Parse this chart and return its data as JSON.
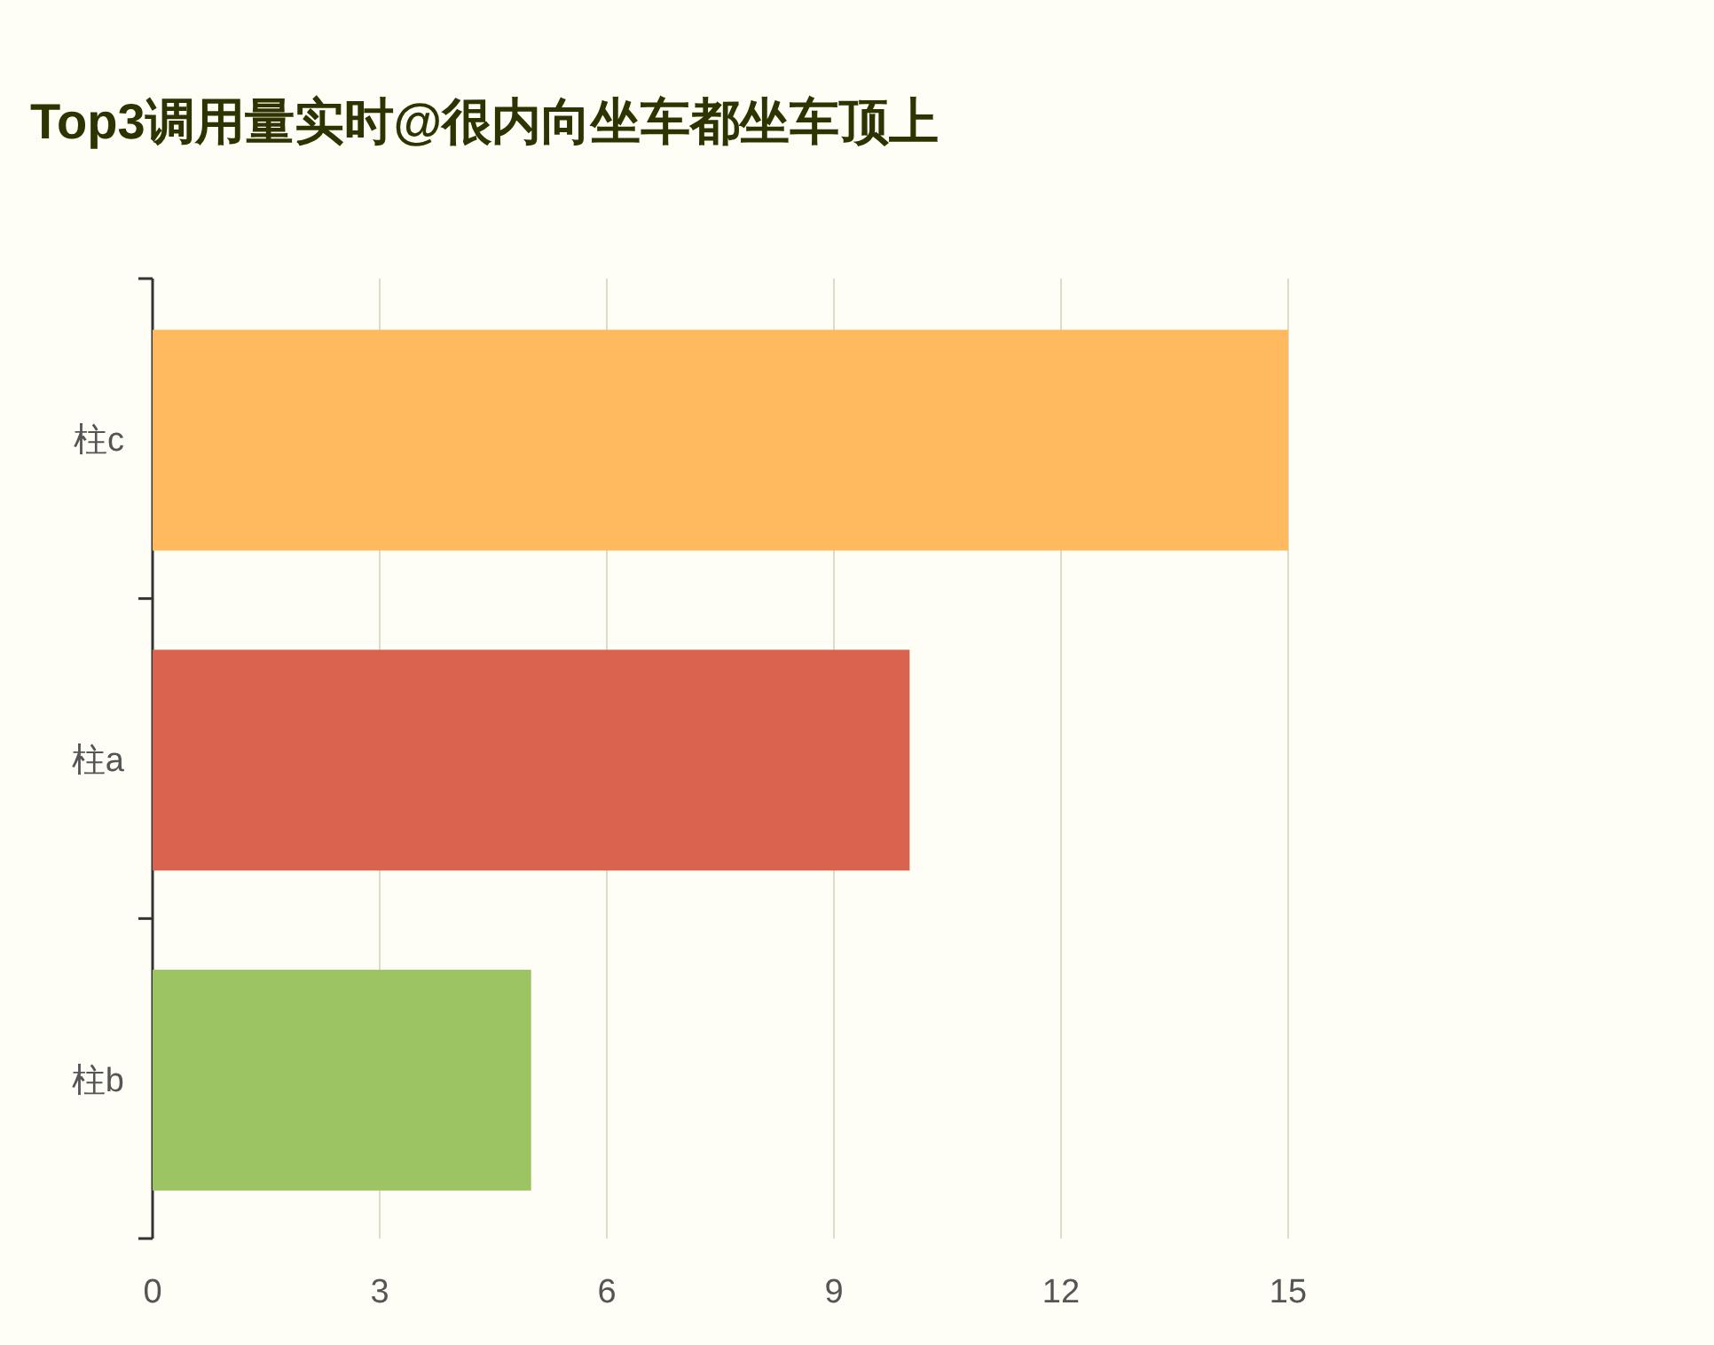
{
  "chart_data": {
    "type": "bar",
    "title": "Top3调用量实时@很内向坐车都坐车顶上",
    "orientation": "horizontal",
    "categories": [
      "柱c",
      "柱a",
      "柱b"
    ],
    "values": [
      15,
      10,
      5
    ],
    "colors": [
      "#ffb95e",
      "#d9634f",
      "#9cc463"
    ],
    "xlim": [
      0,
      15
    ],
    "xticks": [
      0,
      3,
      6,
      9,
      12,
      15
    ],
    "grid": "x"
  }
}
